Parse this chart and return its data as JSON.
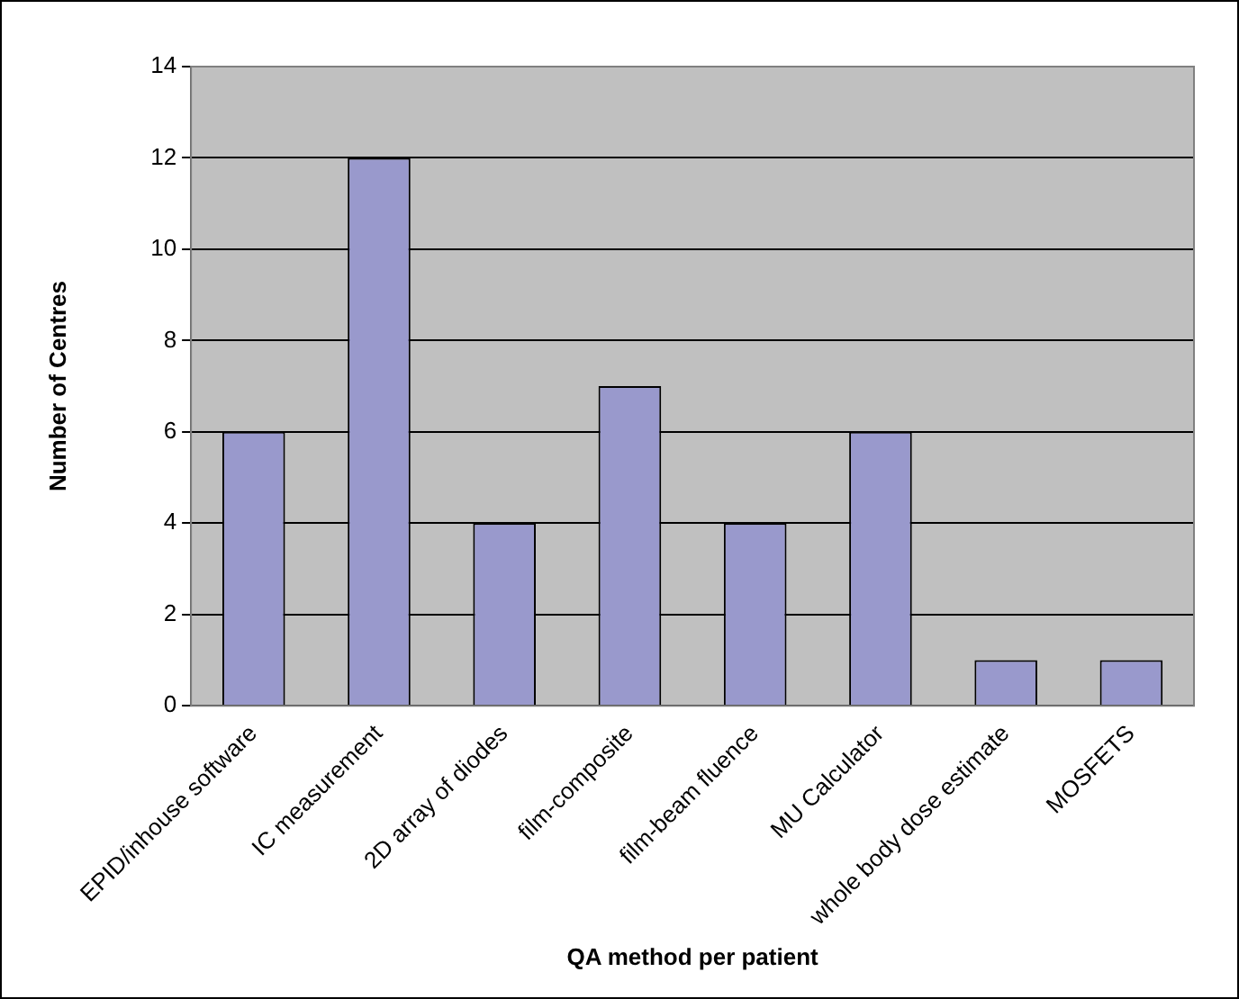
{
  "chart_data": {
    "type": "bar",
    "xlabel": "QA method per patient",
    "ylabel": "Number of Centres",
    "categories": [
      "EPID/inhouse software",
      "IC measurement",
      "2D array of diodes",
      "film-composite",
      "film-beam fluence",
      "MU Calculator",
      "whole body dose estimate",
      "MOSFETS"
    ],
    "values": [
      6,
      12,
      4,
      7,
      4,
      6,
      1,
      1
    ],
    "color": "#9999cc",
    "ylim": [
      0,
      14
    ],
    "yticks": [
      0,
      2,
      4,
      6,
      8,
      10,
      12,
      14
    ],
    "grid": "y"
  }
}
